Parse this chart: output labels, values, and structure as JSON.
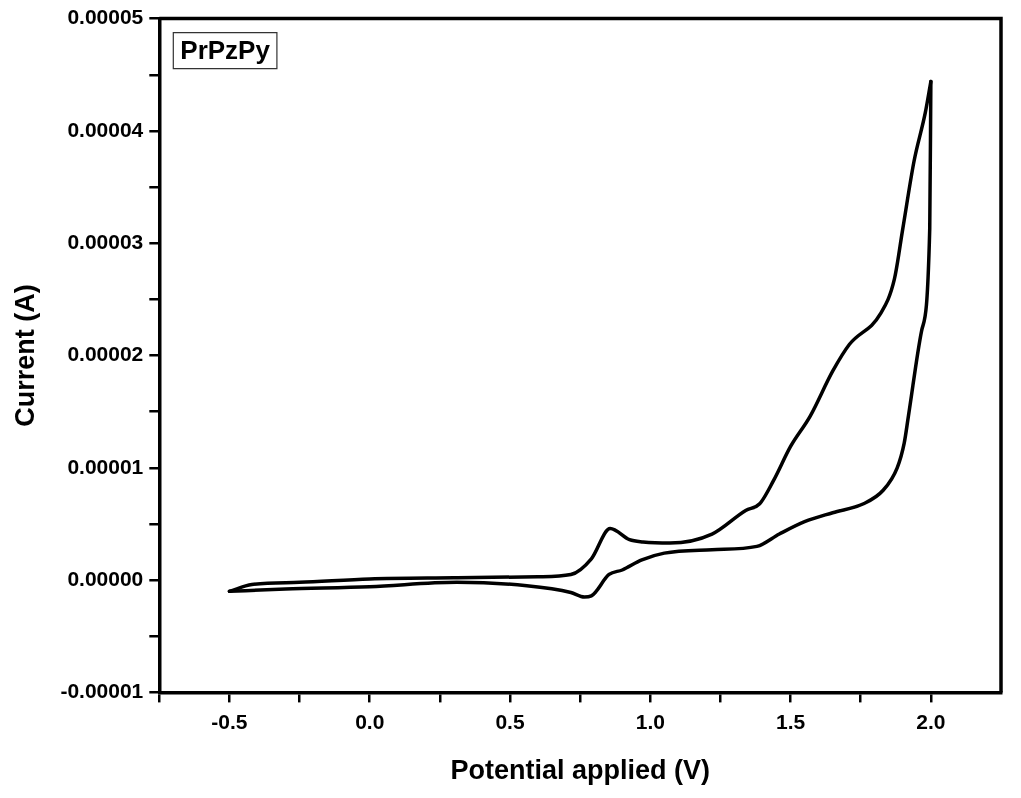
{
  "chart_data": {
    "type": "line",
    "xlabel": "Potential applied (V)",
    "ylabel": "Current (A)",
    "annotations": [
      "PrPzPy"
    ],
    "line_style": "solid",
    "marker": "none",
    "grid": false,
    "legend": false,
    "xlim": [
      -0.75,
      2.25
    ],
    "xticks": [
      {
        "value": -0.75,
        "label": null
      },
      {
        "value": -0.5,
        "label": "-0.5"
      },
      {
        "value": -0.25,
        "label": null
      },
      {
        "value": 0,
        "label": "0.0"
      },
      {
        "value": 0.25,
        "label": null
      },
      {
        "value": 0.5,
        "label": "0.5"
      },
      {
        "value": 0.75,
        "label": null
      },
      {
        "value": 1,
        "label": "1.0"
      },
      {
        "value": 1.25,
        "label": null
      },
      {
        "value": 1.5,
        "label": "1.5"
      },
      {
        "value": 1.75,
        "label": null
      },
      {
        "value": 2,
        "label": "2.0"
      }
    ],
    "ylim": [
      -1e-05,
      5e-05
    ],
    "yticks": [
      {
        "value": -1e-05,
        "label": "-0.00001"
      },
      {
        "value": -5e-06,
        "label": null
      },
      {
        "value": 0,
        "label": "0.00000"
      },
      {
        "value": 5e-06,
        "label": null
      },
      {
        "value": 1e-05,
        "label": "0.00001"
      },
      {
        "value": 1.5e-05,
        "label": null
      },
      {
        "value": 2e-05,
        "label": "0.00002"
      },
      {
        "value": 2.5e-05,
        "label": null
      },
      {
        "value": 3e-05,
        "label": "0.00003"
      },
      {
        "value": 3.5e-05,
        "label": null
      },
      {
        "value": 4e-05,
        "label": "0.00004"
      },
      {
        "value": 4.5e-05,
        "label": null
      },
      {
        "value": 5e-05,
        "label": "0.00005"
      }
    ],
    "series": [
      {
        "color": "#000000",
        "x": [
          -0.5,
          -0.42,
          -0.25,
          0,
          0.3,
          0.6,
          0.717,
          0.79,
          0.857,
          0.926,
          0.974,
          1.07,
          1.22,
          1.34,
          1.39,
          1.44,
          1.5,
          1.57,
          1.65,
          1.71,
          1.82,
          1.87,
          1.9,
          1.94,
          1.98,
          2.0
        ],
        "values": [
          -1e-06,
          -4e-07,
          -2e-07,
          1e-07,
          2e-07,
          3e-07,
          5e-07,
          1.9e-06,
          4.6e-06,
          3.6e-06,
          3.4e-06,
          3.3e-06,
          4.1e-06,
          6.2e-06,
          6.8e-06,
          8.9e-06,
          1.19e-05,
          1.46e-05,
          1.86e-05,
          2.1e-05,
          2.37e-05,
          2.68e-05,
          3.13e-05,
          3.73e-05,
          4.16e-05,
          4.44e-05
        ]
      },
      {
        "color": "#000000",
        "x": [
          -0.5,
          -0.3,
          0.0,
          0.31,
          0.56,
          0.717,
          0.765,
          0.79,
          0.853,
          0.9,
          0.97,
          1.05,
          1.22,
          1.38,
          1.46,
          1.55,
          1.65,
          1.76,
          1.83,
          1.88,
          1.905,
          1.92,
          1.967,
          1.996,
          2.0
        ],
        "values": [
          -1e-06,
          -8e-07,
          -6e-07,
          -2e-07,
          -5e-07,
          -1.1e-06,
          -1.5e-06,
          -1.4e-06,
          5e-07,
          9e-07,
          1.8e-06,
          2.4e-06,
          2.7e-06,
          3e-06,
          4.1e-06,
          5.2e-06,
          6e-06,
          6.8e-06,
          8e-06,
          1e-05,
          1.22e-05,
          1.46e-05,
          2.22e-05,
          3.13e-05,
          4.44e-05
        ]
      }
    ]
  }
}
